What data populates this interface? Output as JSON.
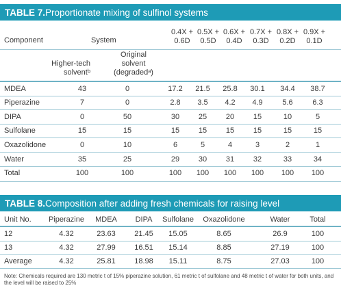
{
  "table7": {
    "number": "TABLE 7.",
    "title": " Proportionate mixing of sulfinol systems",
    "header": {
      "component": "Component",
      "system": "System",
      "mix_cols": [
        [
          "0.4X +",
          "0.6D"
        ],
        [
          "0.5X +",
          "0.5D"
        ],
        [
          "0.6X +",
          "0.4D"
        ],
        [
          "0.7X +",
          "0.3D"
        ],
        [
          "0.8X +",
          "0.2D"
        ],
        [
          "0.9X +",
          "0.1D"
        ]
      ],
      "sub_higher": [
        "Higher-tech",
        "solventᵇ"
      ],
      "sub_original": [
        "Original",
        "solvent",
        "(degradedᵃ)"
      ]
    },
    "rows": [
      {
        "name": "MDEA",
        "vals": [
          "43",
          "0",
          "17.2",
          "21.5",
          "25.8",
          "30.1",
          "34.4",
          "38.7"
        ]
      },
      {
        "name": "Piperazine",
        "vals": [
          "7",
          "0",
          "2.8",
          "3.5",
          "4.2",
          "4.9",
          "5.6",
          "6.3"
        ]
      },
      {
        "name": "DIPA",
        "vals": [
          "0",
          "50",
          "30",
          "25",
          "20",
          "15",
          "10",
          "5"
        ]
      },
      {
        "name": "Sulfolane",
        "vals": [
          "15",
          "15",
          "15",
          "15",
          "15",
          "15",
          "15",
          "15"
        ]
      },
      {
        "name": "Oxazolidone",
        "vals": [
          "0",
          "10",
          "6",
          "5",
          "4",
          "3",
          "2",
          "1"
        ]
      },
      {
        "name": "Water",
        "vals": [
          "35",
          "25",
          "29",
          "30",
          "31",
          "32",
          "33",
          "34"
        ]
      },
      {
        "name": "Total",
        "vals": [
          "100",
          "100",
          "100",
          "100",
          "100",
          "100",
          "100",
          "100"
        ]
      }
    ]
  },
  "table8": {
    "number": "TABLE 8.",
    "title": " Composition after adding fresh chemicals for raising level",
    "headers": [
      "Unit No.",
      "Piperazine",
      "MDEA",
      "DIPA",
      "Sulfolane",
      "Oxazolidone",
      "Water",
      "Total"
    ],
    "rows": [
      [
        "12",
        "4.32",
        "23.63",
        "21.45",
        "15.05",
        "8.65",
        "26.9",
        "100"
      ],
      [
        "13",
        "4.32",
        "27.99",
        "16.51",
        "15.14",
        "8.85",
        "27.19",
        "100"
      ],
      [
        "Average",
        "4.32",
        "25.81",
        "18.98",
        "15.11",
        "8.75",
        "27.03",
        "100"
      ]
    ],
    "note": "Note: Chemicals required are 130 metric t of 15% piperazine solution, 61 metric t of sulfolane and 48 metric t of water for both units, and the level will be raised to 25%"
  },
  "colors": {
    "banner": "#1e9bb6",
    "rule": "#9fc9d6",
    "text": "#3a3a3a"
  }
}
